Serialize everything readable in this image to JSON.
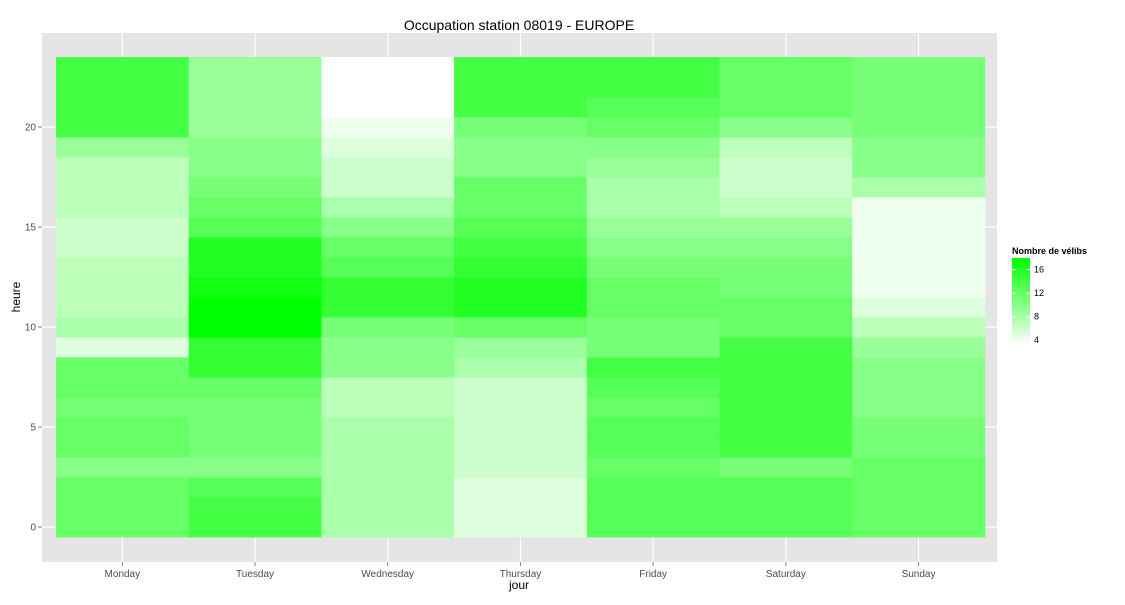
{
  "chart_data": {
    "type": "heatmap",
    "title": "Occupation station 08019 - EUROPE",
    "xlabel": "jour",
    "ylabel": "heure",
    "categories": [
      "Monday",
      "Tuesday",
      "Wednesday",
      "Thursday",
      "Friday",
      "Saturday",
      "Sunday"
    ],
    "y": [
      0,
      1,
      2,
      3,
      4,
      5,
      6,
      7,
      8,
      9,
      10,
      11,
      12,
      13,
      14,
      15,
      16,
      17,
      18,
      19,
      20,
      21,
      22,
      23
    ],
    "ylim": [
      -0.5,
      23.5
    ],
    "yticks": [
      0,
      5,
      10,
      15,
      20
    ],
    "values": [
      [
        12,
        12,
        12,
        10,
        12,
        12,
        11,
        12,
        12,
        5,
        8,
        7,
        7,
        7,
        6,
        6,
        7,
        7,
        7,
        9,
        14,
        14,
        14,
        14
      ],
      [
        14,
        14,
        13,
        10,
        11,
        11,
        11,
        12,
        15,
        15,
        18,
        18,
        17,
        16,
        16,
        13,
        12,
        11,
        10,
        10,
        9,
        9,
        9,
        9
      ],
      [
        8,
        8,
        8,
        8,
        8,
        8,
        7,
        7,
        10,
        10,
        11,
        15,
        15,
        13,
        12,
        10,
        8,
        6,
        6,
        5,
        4,
        3,
        3,
        3
      ],
      [
        5,
        5,
        5,
        6,
        6,
        6,
        6,
        6,
        8,
        9,
        12,
        16,
        16,
        15,
        14,
        13,
        12,
        12,
        10,
        10,
        11,
        14,
        14,
        14
      ],
      [
        13,
        13,
        13,
        12,
        13,
        13,
        12,
        13,
        14,
        11,
        11,
        12,
        12,
        11,
        10,
        9,
        8,
        8,
        9,
        10,
        12,
        13,
        14,
        14
      ],
      [
        13,
        13,
        13,
        11,
        14,
        14,
        14,
        14,
        14,
        14,
        12,
        12,
        11,
        11,
        10,
        9,
        7,
        6,
        6,
        7,
        10,
        12,
        12,
        12
      ],
      [
        12,
        12,
        12,
        12,
        11,
        11,
        10,
        10,
        10,
        9,
        7,
        5,
        4,
        4,
        4,
        4,
        4,
        8,
        10,
        10,
        11,
        11,
        11,
        11
      ]
    ],
    "legend": {
      "title": "Nombre de vélibs",
      "ticks": [
        "4",
        "8",
        "12",
        "16"
      ],
      "tick_values": [
        4,
        8,
        12,
        16
      ],
      "range": [
        3,
        18
      ],
      "position": "right"
    },
    "colors": {
      "low": "#ffffff",
      "high": "#00ff00",
      "panel": "#e5e5e5",
      "grid": "#ffffff",
      "tick_text": "#4d4d4d"
    },
    "grid": true
  }
}
